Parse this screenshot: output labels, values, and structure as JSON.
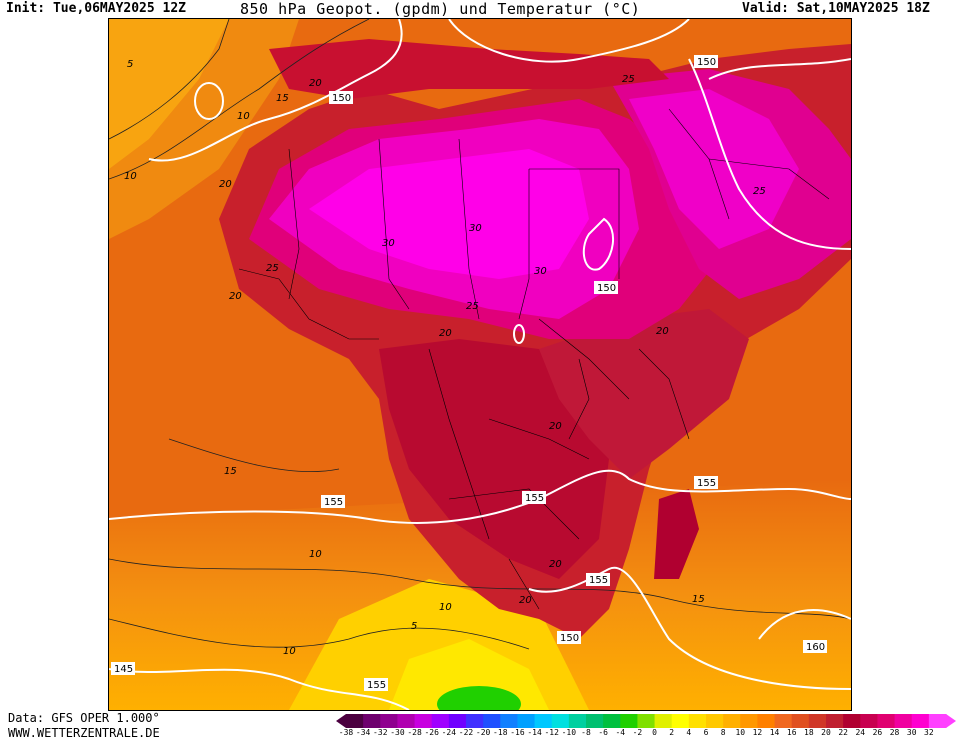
{
  "header": {
    "init": "Init: Tue,06MAY2025 12Z",
    "title": "850 hPa Geopot. (gpdm) und Temperatur (°C)",
    "valid": "Valid: Sat,10MAY2025 18Z"
  },
  "footer": {
    "data_source": "Data: GFS OPER 1.000°",
    "website": "WWW.WETTERZENTRALE.DE"
  },
  "legend": {
    "ticks": [
      "-38",
      "-34",
      "-32",
      "-30",
      "-28",
      "-26",
      "-24",
      "-22",
      "-20",
      "-18",
      "-16",
      "-14",
      "-12",
      "-10",
      "-8",
      "-6",
      "-4",
      "-2",
      "0",
      "2",
      "4",
      "6",
      "8",
      "10",
      "12",
      "14",
      "16",
      "18",
      "20",
      "22",
      "24",
      "26",
      "28",
      "30",
      "32"
    ],
    "colors": [
      "#4b0040",
      "#6e006e",
      "#8f008f",
      "#b000b0",
      "#c800e0",
      "#a000ff",
      "#7000ff",
      "#4030ff",
      "#2050ff",
      "#1080ff",
      "#00a0ff",
      "#00c8ff",
      "#00e0e0",
      "#00d0a0",
      "#00c070",
      "#00c040",
      "#20d000",
      "#80e000",
      "#e0f000",
      "#ffff00",
      "#ffe000",
      "#ffc800",
      "#ffb000",
      "#ff9800",
      "#ff8000",
      "#f06820",
      "#e05020",
      "#d03828",
      "#c02030",
      "#b00030",
      "#c80050",
      "#e00070",
      "#f000a0",
      "#ff00d0",
      "#ff40ff"
    ]
  },
  "contours": {
    "geopotential_labels": [
      "150",
      "150",
      "150",
      "155",
      "155",
      "155",
      "155",
      "150",
      "160",
      "145",
      "155"
    ],
    "temperature_labels": [
      "5",
      "10",
      "10",
      "15",
      "20",
      "20",
      "25",
      "25",
      "25",
      "20",
      "30",
      "30",
      "30",
      "25",
      "20",
      "20",
      "20",
      "15",
      "15",
      "10",
      "10",
      "5",
      "10",
      "20",
      "20",
      "15"
    ]
  },
  "colors": {
    "ocean_base": "#e86a10",
    "land_hot": "#c0102c",
    "extreme_heat": "#ff00e0",
    "cool_south": "#ffc000",
    "cold_cell": "#20d000"
  }
}
